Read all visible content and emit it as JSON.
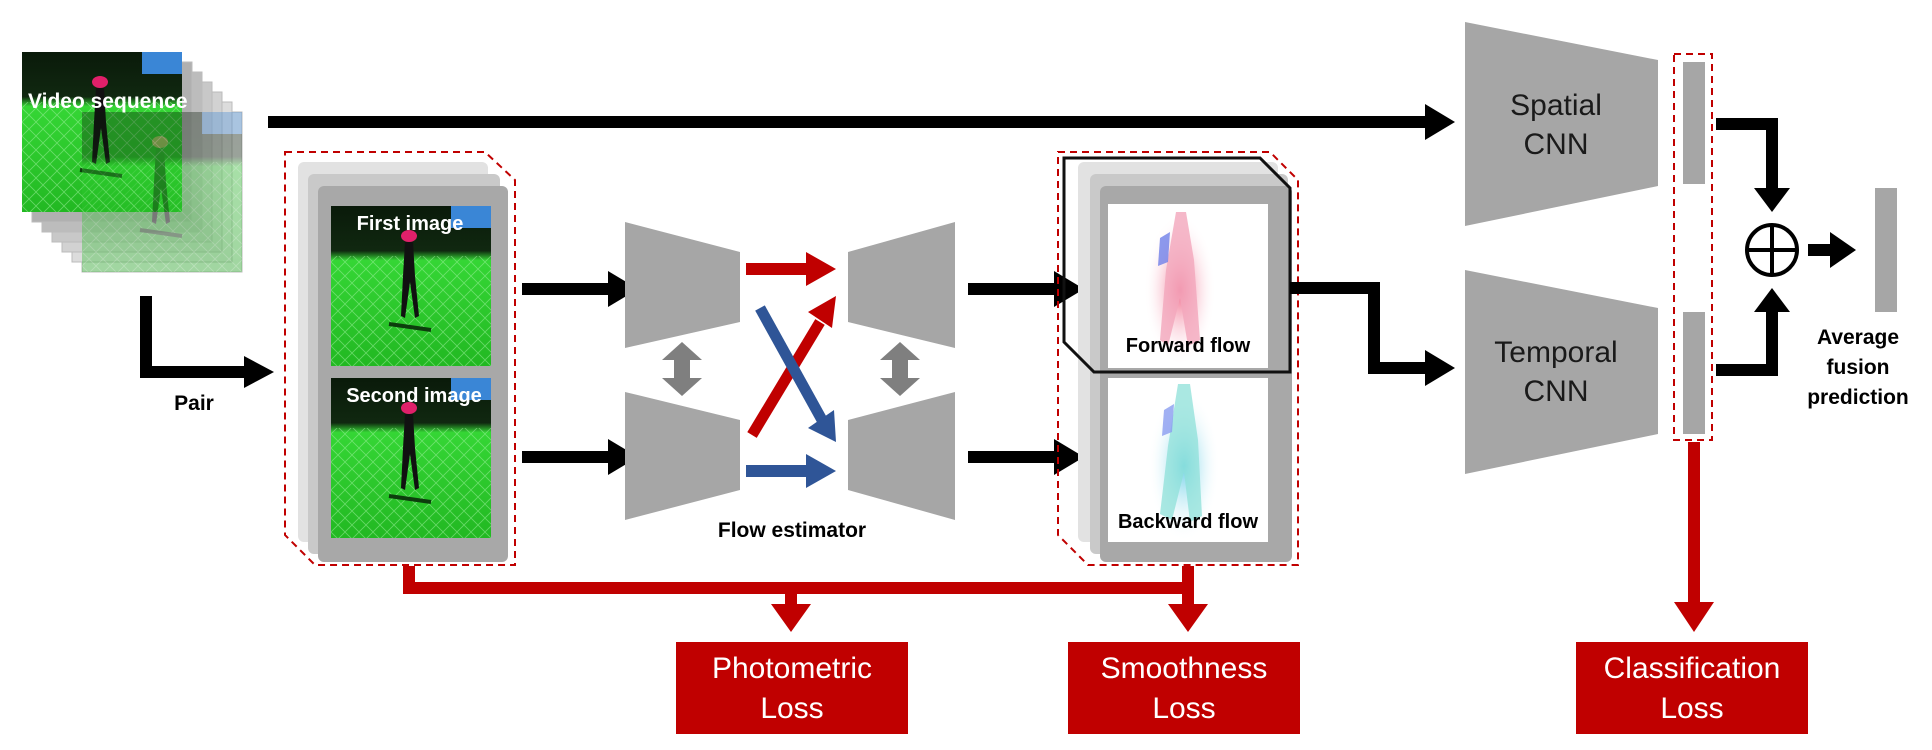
{
  "diagram": {
    "video_sequence_label": "Video sequence",
    "pair_label": "Pair",
    "first_image_label": "First image",
    "second_image_label": "Second image",
    "flow_estimator_label": "Flow estimator",
    "forward_flow_label": "Forward flow",
    "backward_flow_label": "Backward flow",
    "spatial_cnn": [
      "Spatial",
      "CNN"
    ],
    "temporal_cnn": [
      "Temporal",
      "CNN"
    ],
    "fusion_label": [
      "Average",
      "fusion",
      "prediction"
    ],
    "losses": {
      "photometric": [
        "Photometric",
        "Loss"
      ],
      "smoothness": [
        "Smoothness",
        "Loss"
      ],
      "classification": [
        "Classification",
        "Loss"
      ]
    }
  },
  "colors": {
    "accent_red": "#c00000",
    "box_gray": "#a6a6a6",
    "arrow_black": "#000000",
    "arrow_blue": "#2f5597",
    "field_green": "#2ecc2e"
  }
}
